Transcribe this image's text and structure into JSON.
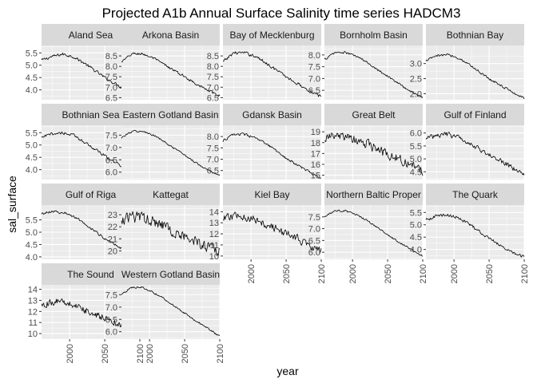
{
  "chart_data": {
    "type": "line",
    "title": "Projected A1b Annual Surface Salinity time series HADCM3",
    "xlabel": "year",
    "ylabel": "sal_surface",
    "x_ticks": [
      2000,
      2050,
      2100
    ],
    "xlim": [
      1960,
      2100
    ],
    "grid": true,
    "legend": "none",
    "colors": {
      "panel_bg": "#EBEBEB",
      "strip_bg": "#D9D9D9",
      "grid_major": "#FFFFFF",
      "line": "#000000",
      "tick_text": "#4D4D4D",
      "strip_text": "#1A1A1A"
    },
    "facets": [
      {
        "name": "Aland Sea",
        "label": "Aland Sea",
        "ylim": [
          3.6,
          5.8
        ],
        "yticks": [
          "4.0",
          "4.5",
          "5.0",
          "5.5"
        ],
        "series": {
          "x": [
            1960,
            1975,
            1990,
            2005,
            2020,
            2035,
            2050,
            2065,
            2080,
            2095,
            2100
          ],
          "y": [
            5.2,
            5.35,
            5.45,
            5.35,
            5.1,
            4.8,
            4.5,
            4.25,
            4.0,
            3.75,
            3.7
          ]
        },
        "noise": 0.08
      },
      {
        "name": "Arkona Basin",
        "label": "Arkona Basin",
        "ylim": [
          6.4,
          9.0
        ],
        "yticks": [
          "6.5",
          "7.0",
          "7.5",
          "8.0",
          "8.5"
        ],
        "series": {
          "x": [
            1960,
            1975,
            1990,
            2005,
            2020,
            2035,
            2050,
            2065,
            2080,
            2095,
            2100
          ],
          "y": [
            8.2,
            8.6,
            8.6,
            8.4,
            8.1,
            7.8,
            7.5,
            7.2,
            6.9,
            6.65,
            6.6
          ]
        },
        "noise": 0.08
      },
      {
        "name": "Bay of Mecklenburg",
        "label": "Bay of Mecklenburg",
        "ylim": [
          6.4,
          9.0
        ],
        "yticks": [
          "6.5",
          "7.0",
          "7.5",
          "8.0",
          "8.5"
        ],
        "series": {
          "x": [
            1960,
            1975,
            1990,
            2005,
            2020,
            2035,
            2050,
            2065,
            2080,
            2095,
            2100
          ],
          "y": [
            8.2,
            8.65,
            8.65,
            8.5,
            8.2,
            7.85,
            7.5,
            7.2,
            6.9,
            6.6,
            6.55
          ]
        },
        "noise": 0.1
      },
      {
        "name": "Bornholm Basin",
        "label": "Bornholm Basin",
        "ylim": [
          6.1,
          8.4
        ],
        "yticks": [
          "6.5",
          "7.0",
          "7.5",
          "8.0"
        ],
        "series": {
          "x": [
            1960,
            1975,
            1990,
            2005,
            2020,
            2035,
            2050,
            2065,
            2080,
            2095,
            2100
          ],
          "y": [
            7.8,
            8.1,
            8.1,
            7.95,
            7.7,
            7.4,
            7.1,
            6.8,
            6.5,
            6.25,
            6.2
          ]
        },
        "noise": 0.06
      },
      {
        "name": "Bothnian Bay",
        "label": "Bothnian Bay",
        "ylim": [
          1.8,
          3.6
        ],
        "yticks": [
          "2.0",
          "2.5",
          "3.0"
        ],
        "series": {
          "x": [
            1960,
            1975,
            1990,
            2005,
            2020,
            2035,
            2050,
            2065,
            2080,
            2095,
            2100
          ],
          "y": [
            3.1,
            3.25,
            3.3,
            3.2,
            3.0,
            2.75,
            2.5,
            2.3,
            2.1,
            1.9,
            1.85
          ]
        },
        "noise": 0.05
      },
      {
        "name": "Bothnian Sea",
        "label": "Bothnian Sea",
        "ylim": [
          3.6,
          5.8
        ],
        "yticks": [
          "4.0",
          "4.5",
          "5.0",
          "5.5"
        ],
        "series": {
          "x": [
            1960,
            1975,
            1990,
            2005,
            2020,
            2035,
            2050,
            2065,
            2080,
            2095,
            2100
          ],
          "y": [
            5.3,
            5.45,
            5.5,
            5.4,
            5.15,
            4.85,
            4.55,
            4.3,
            4.05,
            3.8,
            3.75
          ]
        },
        "noise": 0.08
      },
      {
        "name": "Eastern Gotland Basin",
        "label": "Eastern Gotland Basin",
        "ylim": [
          5.7,
          7.9
        ],
        "yticks": [
          "6.0",
          "6.5",
          "7.0",
          "7.5"
        ],
        "series": {
          "x": [
            1960,
            1975,
            1990,
            2005,
            2020,
            2035,
            2050,
            2065,
            2080,
            2095,
            2100
          ],
          "y": [
            7.4,
            7.65,
            7.65,
            7.5,
            7.25,
            6.95,
            6.7,
            6.4,
            6.15,
            5.9,
            5.85
          ]
        },
        "noise": 0.05
      },
      {
        "name": "Gdansk Basin",
        "label": "Gdansk Basin",
        "ylim": [
          6.1,
          8.5
        ],
        "yticks": [
          "6.5",
          "7.0",
          "7.5",
          "8.0"
        ],
        "series": {
          "x": [
            1960,
            1975,
            1990,
            2005,
            2020,
            2035,
            2050,
            2065,
            2080,
            2095,
            2100
          ],
          "y": [
            7.8,
            8.1,
            8.1,
            7.95,
            7.7,
            7.4,
            7.05,
            6.75,
            6.5,
            6.2,
            6.15
          ]
        },
        "noise": 0.07
      },
      {
        "name": "Great Belt",
        "label": "Great Belt",
        "ylim": [
          14.6,
          19.6
        ],
        "yticks": [
          "15",
          "16",
          "17",
          "18",
          "19"
        ],
        "series": {
          "x": [
            1960,
            1975,
            1990,
            2005,
            2020,
            2035,
            2050,
            2065,
            2080,
            2095,
            2100
          ],
          "y": [
            18.4,
            18.6,
            18.5,
            18.2,
            17.9,
            17.4,
            16.9,
            16.5,
            16.1,
            15.6,
            15.4
          ]
        },
        "noise": 0.55
      },
      {
        "name": "Gulf of Finland",
        "label": "Gulf of Finland",
        "ylim": [
          4.2,
          6.3
        ],
        "yticks": [
          "4.5",
          "5.0",
          "5.5",
          "6.0"
        ],
        "series": {
          "x": [
            1960,
            1975,
            1990,
            2005,
            2020,
            2035,
            2050,
            2065,
            2080,
            2095,
            2100
          ],
          "y": [
            5.8,
            5.9,
            5.95,
            5.85,
            5.65,
            5.4,
            5.15,
            4.95,
            4.7,
            4.45,
            4.4
          ]
        },
        "noise": 0.12
      },
      {
        "name": "Gulf of Riga",
        "label": "Gulf of Riga",
        "ylim": [
          3.9,
          6.1
        ],
        "yticks": [
          "4.0",
          "4.5",
          "5.0",
          "5.5"
        ],
        "series": {
          "x": [
            1960,
            1975,
            1990,
            2005,
            2020,
            2035,
            2050,
            2065,
            2080,
            2095,
            2100
          ],
          "y": [
            5.75,
            5.85,
            5.8,
            5.65,
            5.4,
            5.05,
            4.75,
            4.5,
            4.25,
            4.05,
            4.0
          ]
        },
        "noise": 0.07
      },
      {
        "name": "Kattegat",
        "label": "Kattegat",
        "ylim": [
          19.3,
          23.8
        ],
        "yticks": [
          "20",
          "21",
          "22",
          "23"
        ],
        "series": {
          "x": [
            1960,
            1975,
            1990,
            2005,
            2020,
            2035,
            2050,
            2065,
            2080,
            2095,
            2100
          ],
          "y": [
            22.6,
            22.8,
            22.8,
            22.5,
            22.1,
            21.6,
            21.2,
            20.8,
            20.4,
            20.0,
            19.9
          ]
        },
        "noise": 0.6
      },
      {
        "name": "Kiel Bay",
        "label": "Kiel Bay",
        "ylim": [
          9.7,
          14.6
        ],
        "yticks": [
          "10",
          "11",
          "12",
          "13",
          "14"
        ],
        "series": {
          "x": [
            1960,
            1975,
            1990,
            2005,
            2020,
            2035,
            2050,
            2065,
            2080,
            2095,
            2100
          ],
          "y": [
            13.3,
            13.6,
            13.6,
            13.3,
            12.9,
            12.5,
            12.0,
            11.6,
            11.1,
            10.6,
            10.4
          ]
        },
        "noise": 0.45
      },
      {
        "name": "Northern Baltic Proper",
        "label": "Northern Baltic Proper",
        "ylim": [
          5.7,
          8.0
        ],
        "yticks": [
          "6.0",
          "6.5",
          "7.0",
          "7.5"
        ],
        "series": {
          "x": [
            1960,
            1975,
            1990,
            2005,
            2020,
            2035,
            2050,
            2065,
            2080,
            2095,
            2100
          ],
          "y": [
            7.5,
            7.75,
            7.75,
            7.6,
            7.35,
            7.05,
            6.75,
            6.45,
            6.2,
            5.9,
            5.85
          ]
        },
        "noise": 0.05
      },
      {
        "name": "The Quark",
        "label": "The Quark",
        "ylim": [
          3.6,
          5.8
        ],
        "yticks": [
          "4.0",
          "4.5",
          "5.0",
          "5.5"
        ],
        "series": {
          "x": [
            1960,
            1975,
            1990,
            2005,
            2020,
            2035,
            2050,
            2065,
            2080,
            2095,
            2100
          ],
          "y": [
            5.2,
            5.35,
            5.4,
            5.3,
            5.05,
            4.75,
            4.45,
            4.2,
            3.95,
            3.75,
            3.7
          ]
        },
        "noise": 0.08
      },
      {
        "name": "The Sound",
        "label": "The Sound",
        "ylim": [
          9.5,
          14.4
        ],
        "yticks": [
          "10",
          "11",
          "12",
          "13",
          "14"
        ],
        "series": {
          "x": [
            1960,
            1975,
            1990,
            2005,
            2020,
            2035,
            2050,
            2065,
            2080,
            2095,
            2100
          ],
          "y": [
            12.6,
            12.8,
            12.9,
            12.6,
            12.2,
            11.8,
            11.4,
            11.0,
            10.6,
            10.1,
            9.9
          ]
        },
        "noise": 0.4
      },
      {
        "name": "Western Gotland Basin",
        "label": "Western Gotland Basin",
        "ylim": [
          5.7,
          7.9
        ],
        "yticks": [
          "6.0",
          "6.5",
          "7.0",
          "7.5"
        ],
        "series": {
          "x": [
            1960,
            1975,
            1990,
            2005,
            2020,
            2035,
            2050,
            2065,
            2080,
            2095,
            2100
          ],
          "y": [
            7.5,
            7.8,
            7.8,
            7.6,
            7.35,
            7.05,
            6.75,
            6.45,
            6.2,
            5.9,
            5.8
          ]
        },
        "noise": 0.05
      }
    ]
  }
}
